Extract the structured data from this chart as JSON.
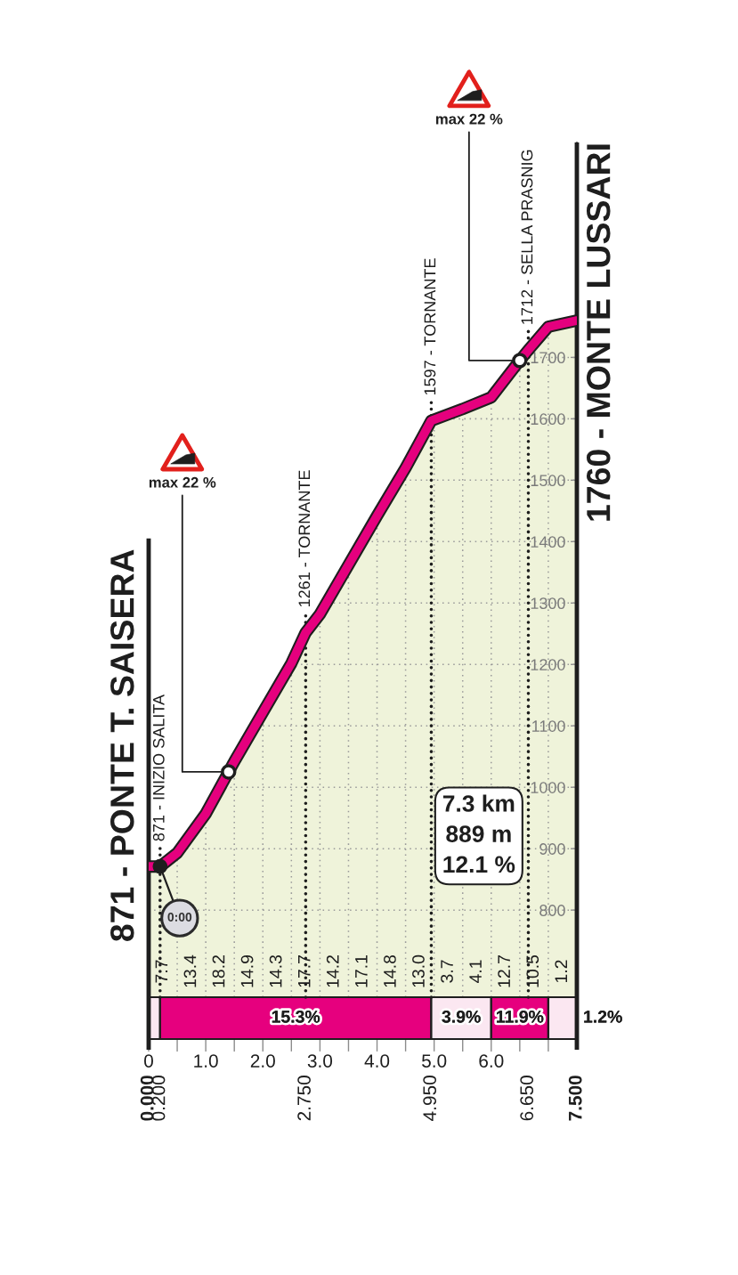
{
  "chart_data": [
    {
      "type": "area",
      "xlim": [
        0,
        7.5
      ],
      "ylim": [
        590,
        2050
      ],
      "xticks": [
        0,
        {
          "value": 0.5,
          "label": null
        },
        {
          "value": 1,
          "label": "1.0"
        },
        {
          "value": 1.5,
          "label": null
        },
        {
          "value": 2,
          "label": "2.0"
        },
        {
          "value": 2.5,
          "label": null
        },
        {
          "value": 3,
          "label": "3.0"
        },
        {
          "value": 3.5,
          "label": null
        },
        {
          "value": 4,
          "label": "4.0"
        },
        {
          "value": 4.5,
          "label": null
        },
        {
          "value": 5,
          "label": "5.0"
        },
        {
          "value": 5.5,
          "label": null
        },
        {
          "value": 6,
          "label": "6.0"
        },
        {
          "value": 6.5,
          "label": null
        },
        {
          "value": 7,
          "label": null
        }
      ],
      "x2lim": [
        0,
        7.5
      ],
      "x2ticks": [
        {
          "value": 0,
          "label": "0.000"
        },
        {
          "value": 0.2,
          "label": "0.200"
        },
        {
          "value": 2.75,
          "label": "2.750"
        },
        {
          "value": 4.95,
          "label": "4.950"
        },
        {
          "value": 6.65,
          "label": "6.650"
        },
        {
          "value": 7.5,
          "label": "7.500"
        }
      ],
      "yticks": [
        800,
        900,
        1000,
        1100,
        1200,
        1300,
        1400,
        1500,
        1600,
        1700
      ],
      "grid": true,
      "x": [
        0,
        0.2,
        0.5,
        1.0,
        1.5,
        2.0,
        2.5,
        2.75,
        3.0,
        3.5,
        4.0,
        4.5,
        4.95,
        5.5,
        6.0,
        6.5,
        6.65,
        7.0,
        7.5
      ],
      "series": [
        {
          "color": "#eff3da",
          "values": [
            871,
            871,
            893,
            957,
            1042,
            1122,
            1202,
            1252,
            1282,
            1362,
            1442,
            1520,
            1597,
            1616,
            1635,
            1695,
            1712,
            1750,
            1760
          ]
        }
      ],
      "bands": [
        {
          "axis": "x",
          "from": 0,
          "to": 0.2,
          "color": "#fbe7f1"
        },
        {
          "axis": "x",
          "from": 0.2,
          "to": 4.95,
          "label": "15.3%",
          "color": "#e6007e"
        },
        {
          "axis": "x",
          "from": 4.95,
          "to": 6.0,
          "label": "3.9%",
          "color": "#fbe7f1"
        },
        {
          "axis": "x",
          "from": 6.0,
          "to": 7.0,
          "label": "11.9%",
          "color": "#e6007e"
        },
        {
          "axis": "x",
          "from": 7.0,
          "to": 7.5,
          "label": "1.2%",
          "color": "#fbe7f1"
        }
      ],
      "ref_lines": [
        {
          "axis": "x",
          "value": 0,
          "label": "871 - PONTE T. SAISERA",
          "line_style": "solid"
        },
        {
          "axis": "x",
          "value": 0.2,
          "label": "871 - INIZIO SALITA",
          "line_style": "dotted"
        },
        {
          "axis": "x",
          "value": 2.75,
          "label": "1261 - TORNANTE",
          "line_style": "dotted"
        },
        {
          "axis": "x",
          "value": 4.95,
          "label": "1597 - TORNANTE",
          "line_style": "dotted"
        },
        {
          "axis": "x",
          "value": 6.65,
          "label": "1712 - SELLA PRASNIG",
          "line_style": "dotted"
        },
        {
          "axis": "x",
          "value": 7.5,
          "label": "1760 - MONTE LUSSARI",
          "line_style": "solid"
        }
      ],
      "annotations": [
        {
          "text": "0:00",
          "x": 0.2,
          "y": 871
        },
        {
          "text": "max 22 %",
          "x": 1.4,
          "y": 1025
        },
        {
          "text": "max 22 %",
          "x": 6.5,
          "y": 1695
        },
        "7.3 km",
        "889 m",
        "12.1 %"
      ]
    },
    {
      "type": "other",
      "annotations": [
        "7.7",
        "13.4",
        "18.2",
        "14.9",
        "14.3",
        "17.7",
        "14.2",
        "17.1",
        "14.8",
        "13.0",
        "3.7",
        "4.1",
        "12.7",
        "10.5",
        "1.2"
      ]
    }
  ]
}
